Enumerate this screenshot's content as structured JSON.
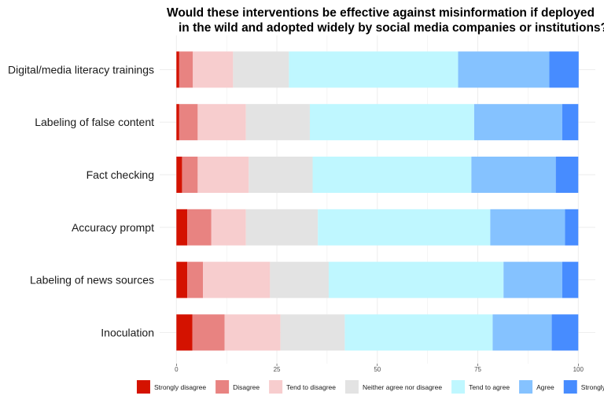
{
  "chart_data": {
    "type": "bar",
    "orientation": "horizontal",
    "stacked": true,
    "title_lines": [
      "Would these interventions be effective against misinformation if deployed",
      "in the wild and adopted widely by social media companies or institutions?"
    ],
    "xlabel": "",
    "ylabel": "",
    "xlim": [
      0,
      100
    ],
    "xticks": [
      0,
      25,
      50,
      75,
      100
    ],
    "grid": true,
    "legend_position": "bottom",
    "categories": [
      "Digital/media literacy trainings",
      "Labeling of false content",
      "Fact checking",
      "Accuracy prompt",
      "Labeling of news sources",
      "Inoculation"
    ],
    "series": [
      {
        "name": "Strongly disagree",
        "color": "#d41200",
        "values": [
          0.7,
          0.7,
          1.4,
          2.7,
          2.7,
          4.0
        ]
      },
      {
        "name": "Disagree",
        "color": "#e88381",
        "values": [
          3.4,
          4.6,
          3.9,
          6.0,
          3.9,
          8.0
        ]
      },
      {
        "name": "Tend to disagree",
        "color": "#f7cdce",
        "values": [
          10.0,
          12.0,
          12.7,
          8.6,
          16.7,
          13.9
        ]
      },
      {
        "name": "Neither agree nor disagree",
        "color": "#e3e3e3",
        "values": [
          13.9,
          15.9,
          15.9,
          17.9,
          14.6,
          16.0
        ]
      },
      {
        "name": "Tend to agree",
        "color": "#bff7ff",
        "values": [
          42.1,
          40.9,
          39.5,
          42.9,
          43.5,
          36.8
        ]
      },
      {
        "name": "Agree",
        "color": "#85c2ff",
        "values": [
          22.7,
          21.9,
          21.0,
          18.6,
          14.6,
          14.7
        ]
      },
      {
        "name": "Strongly agree",
        "color": "#478cff",
        "values": [
          7.3,
          4.0,
          5.6,
          3.3,
          4.0,
          6.6
        ]
      }
    ]
  }
}
